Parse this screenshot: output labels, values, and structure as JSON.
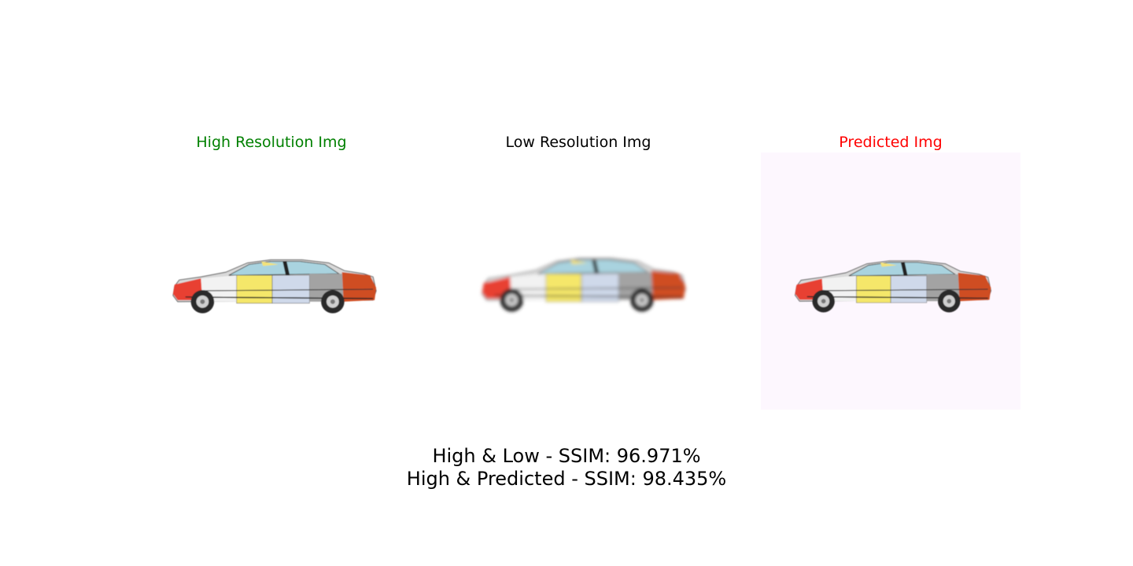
{
  "panels": [
    {
      "title": "High Resolution Img",
      "title_color": "#008000",
      "image": "car-image-high-resolution"
    },
    {
      "title": "Low Resolution Img",
      "title_color": "#000000",
      "image": "car-image-low-resolution"
    },
    {
      "title": "Predicted Img",
      "title_color": "#ff0000",
      "image": "car-image-predicted",
      "background": "#fdf7fe"
    }
  ],
  "metrics": {
    "high_low": "High & Low - SSIM: 96.971%",
    "high_predicted": "High & Predicted - SSIM: 98.435%"
  }
}
